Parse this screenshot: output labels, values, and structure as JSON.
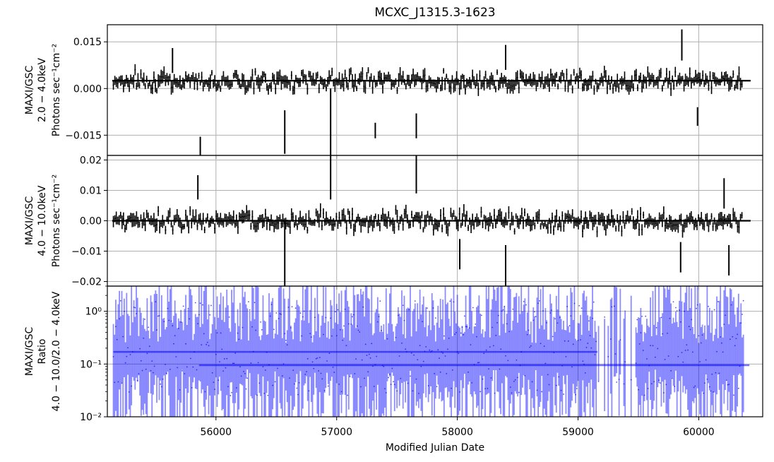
{
  "chart_data": {
    "type": "line",
    "title": "MCXC_J1315.3-1623",
    "xlabel": "Modified Julian Date",
    "xlim": [
      55100,
      60530
    ],
    "xticks": [
      56000,
      57000,
      58000,
      59000,
      60000
    ],
    "grid": true,
    "panels": [
      {
        "id": "soft",
        "ylabel_lines": [
          "MAXI/GSC",
          "2.0 − 4.0keV",
          "Photons sec⁻¹cm⁻²"
        ],
        "ylim": [
          -0.0215,
          0.0205
        ],
        "yticks": [
          -0.015,
          0.0,
          0.015
        ],
        "ytick_labels": [
          "−0.015",
          "0.000",
          "0.015"
        ],
        "color": "#000000",
        "baseline": 0.0025,
        "bin_days": 30,
        "errorbars_sample": [
          {
            "mjd": 55640,
            "y": 0.009,
            "err": 0.004
          },
          {
            "mjd": 55870,
            "y": -0.0195,
            "err": 0.004
          },
          {
            "mjd": 56570,
            "y": -0.014,
            "err": 0.007
          },
          {
            "mjd": 56950,
            "y": -0.012,
            "err": 0.012
          },
          {
            "mjd": 57320,
            "y": -0.0135,
            "err": 0.0025
          },
          {
            "mjd": 57660,
            "y": -0.012,
            "err": 0.004
          },
          {
            "mjd": 58400,
            "y": 0.01,
            "err": 0.004
          },
          {
            "mjd": 59860,
            "y": 0.014,
            "err": 0.005
          },
          {
            "mjd": 59990,
            "y": -0.009,
            "err": 0.003
          }
        ]
      },
      {
        "id": "hard",
        "ylabel_lines": [
          "MAXI/GSC",
          "4.0 − 10.0keV",
          "Photons sec⁻¹cm⁻²"
        ],
        "ylim": [
          -0.0215,
          0.0215
        ],
        "yticks": [
          -0.02,
          -0.01,
          0.0,
          0.01,
          0.02
        ],
        "ytick_labels": [
          "−0.02",
          "−0.01",
          "0.00",
          "0.01",
          "0.02"
        ],
        "color": "#000000",
        "baseline": 0.0,
        "bin_days": 30,
        "errorbars_sample": [
          {
            "mjd": 55850,
            "y": 0.011,
            "err": 0.004
          },
          {
            "mjd": 56570,
            "y": -0.011,
            "err": 0.011
          },
          {
            "mjd": 56950,
            "y": 0.015,
            "err": 0.008
          },
          {
            "mjd": 57660,
            "y": 0.016,
            "err": 0.007
          },
          {
            "mjd": 58020,
            "y": -0.011,
            "err": 0.005
          },
          {
            "mjd": 58400,
            "y": -0.015,
            "err": 0.007
          },
          {
            "mjd": 59850,
            "y": -0.012,
            "err": 0.005
          },
          {
            "mjd": 60210,
            "y": 0.009,
            "err": 0.005
          },
          {
            "mjd": 60250,
            "y": -0.013,
            "err": 0.005
          }
        ]
      },
      {
        "id": "ratio",
        "ylabel_lines": [
          "MAXI/GSC",
          "Ratio",
          "4.0 − 10.0/2.0 − 4.0keV"
        ],
        "yscale": "log",
        "ylim": [
          0.01,
          3.0
        ],
        "yticks": [
          0.01,
          0.1,
          1
        ],
        "ytick_labels": [
          "10⁻²",
          "10⁻¹",
          "10⁰"
        ],
        "color": "#0000ff",
        "bin_days": 30,
        "mean_segments": [
          {
            "x0": 55150,
            "x1": 59160,
            "y": 0.17
          },
          {
            "x0": 55860,
            "x1": 60420,
            "y": 0.095
          }
        ]
      }
    ]
  }
}
